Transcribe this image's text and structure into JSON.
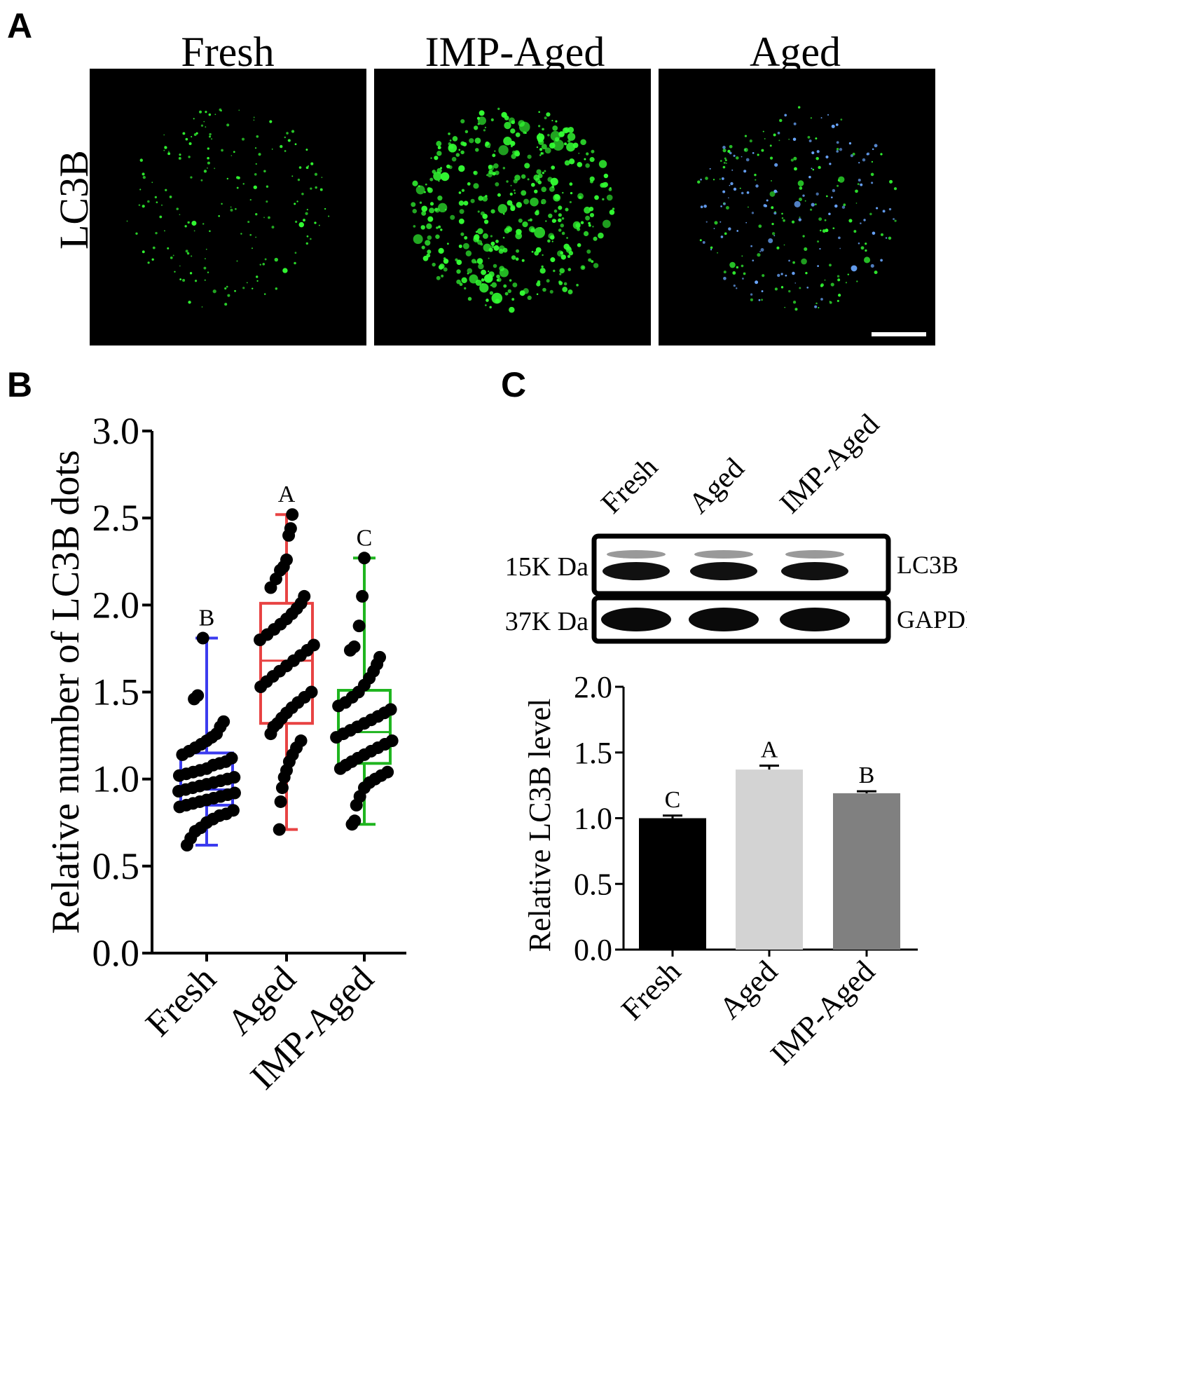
{
  "panels": {
    "A": {
      "label": "A",
      "row_label": "LC3B",
      "columns": [
        "Fresh",
        "IMP-Aged",
        "Aged"
      ],
      "image_colors": {
        "background": "#000000",
        "dots": "#33ff33",
        "dots_alt": "#6aa7ff"
      }
    },
    "B": {
      "label": "B"
    },
    "C": {
      "label": "C",
      "blot": {
        "lanes": [
          "Fresh",
          "Aged",
          "IMP-Aged"
        ],
        "rows": [
          {
            "size": "15K Da",
            "protein": "LC3B"
          },
          {
            "size": "37K Da",
            "protein": "GAPDH"
          }
        ]
      }
    }
  },
  "chart_data": [
    {
      "type": "box",
      "panel": "B",
      "ylabel": "Relative number of LC3B dots",
      "ylim": [
        0.0,
        3.0
      ],
      "yticks": [
        "0.0",
        "0.5",
        "1.0",
        "1.5",
        "2.0",
        "2.5",
        "3.0"
      ],
      "categories": [
        "Fresh",
        "Aged",
        "IMP-Aged"
      ],
      "colors": [
        "#3b3bef",
        "#e84343",
        "#1fb51f"
      ],
      "letters": [
        "B",
        "A",
        "C"
      ],
      "boxes": [
        {
          "min": 0.62,
          "q1": 0.85,
          "median": 0.94,
          "q3": 1.15,
          "max": 1.81
        },
        {
          "min": 0.71,
          "q1": 1.32,
          "median": 1.68,
          "q3": 2.01,
          "max": 2.52
        },
        {
          "min": 0.74,
          "q1": 1.09,
          "median": 1.27,
          "q3": 1.51,
          "max": 2.27
        }
      ],
      "points": [
        [
          0.62,
          0.66,
          0.7,
          0.72,
          0.75,
          0.77,
          0.79,
          0.8,
          0.82,
          0.84,
          0.85,
          0.86,
          0.87,
          0.88,
          0.89,
          0.9,
          0.91,
          0.92,
          0.93,
          0.94,
          0.95,
          0.96,
          0.97,
          0.98,
          0.99,
          1.0,
          1.01,
          1.02,
          1.03,
          1.04,
          1.05,
          1.06,
          1.08,
          1.09,
          1.1,
          1.12,
          1.14,
          1.16,
          1.18,
          1.2,
          1.22,
          1.24,
          1.26,
          1.3,
          1.33,
          1.46,
          1.48,
          1.81
        ],
        [
          0.71,
          0.87,
          0.95,
          1.01,
          1.05,
          1.1,
          1.14,
          1.18,
          1.22,
          1.26,
          1.3,
          1.32,
          1.35,
          1.38,
          1.41,
          1.44,
          1.47,
          1.5,
          1.53,
          1.56,
          1.59,
          1.62,
          1.65,
          1.68,
          1.71,
          1.74,
          1.77,
          1.8,
          1.83,
          1.86,
          1.89,
          1.92,
          1.95,
          1.98,
          2.01,
          2.05,
          2.1,
          2.15,
          2.2,
          2.22,
          2.26,
          2.4,
          2.44,
          2.52
        ],
        [
          0.74,
          0.76,
          0.85,
          0.9,
          0.95,
          0.98,
          1.0,
          1.02,
          1.04,
          1.06,
          1.08,
          1.1,
          1.12,
          1.14,
          1.16,
          1.18,
          1.2,
          1.22,
          1.24,
          1.26,
          1.28,
          1.3,
          1.32,
          1.34,
          1.36,
          1.38,
          1.4,
          1.42,
          1.44,
          1.47,
          1.5,
          1.54,
          1.58,
          1.62,
          1.66,
          1.7,
          1.74,
          1.76,
          1.88,
          2.05,
          2.27
        ]
      ]
    },
    {
      "type": "bar",
      "panel": "C",
      "ylabel": "Relative LC3B level",
      "ylim": [
        0.0,
        2.0
      ],
      "yticks": [
        "0.0",
        "0.5",
        "1.0",
        "1.5",
        "2.0"
      ],
      "categories": [
        "Fresh",
        "Aged",
        "IMP-Aged"
      ],
      "values": [
        1.0,
        1.37,
        1.19
      ],
      "errors": [
        0.02,
        0.03,
        0.015
      ],
      "colors": [
        "#000000",
        "#d3d3d3",
        "#808080"
      ],
      "letters": [
        "C",
        "A",
        "B"
      ]
    }
  ]
}
